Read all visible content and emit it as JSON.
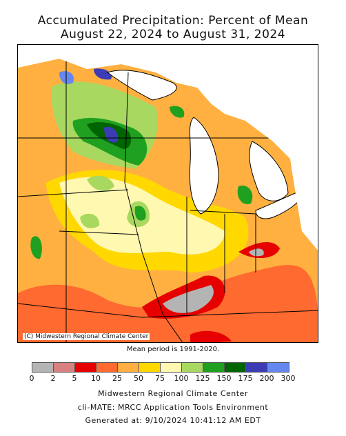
{
  "title_line1": "Accumulated Precipitation: Percent of Mean",
  "title_line2": "August 22, 2024 to August 31, 2024",
  "copyright": "(C) Midwestern Regional Climate Center",
  "mean_note": "Mean period is 1991-2020.",
  "legend": {
    "colors": [
      "#b4b4b4",
      "#d98080",
      "#e60000",
      "#ff6a30",
      "#ffb040",
      "#ffd800",
      "#fff8b0",
      "#a8d860",
      "#20a020",
      "#006400",
      "#3c3cb4",
      "#6488f0"
    ],
    "ticks": [
      "0",
      "2",
      "5",
      "10",
      "25",
      "50",
      "75",
      "100",
      "125",
      "150",
      "175",
      "200",
      "300"
    ],
    "units": "percent of mean"
  },
  "footer_line1": "Midwestern Regional Climate Center",
  "footer_line2": "cli-MATE: MRCC Application Tools Environment",
  "footer_line3": "Generated at: 9/10/2024 10:41:12 AM EDT"
}
